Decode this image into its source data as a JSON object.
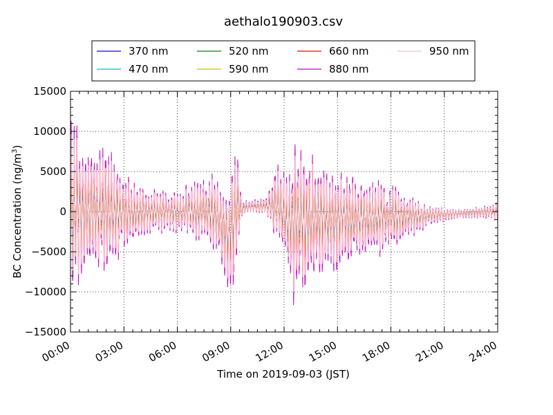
{
  "chart_data": {
    "type": "line",
    "title": "aethalo190903.csv",
    "xlabel": "Time on 2019-09-03 (JST)",
    "ylabel": "BC Concentration (ng/m",
    "ylabel_sup": "3",
    "ylabel_tail": ")",
    "xlim": [
      0,
      24
    ],
    "ylim": [
      -15000,
      15000
    ],
    "grid": true,
    "legend_position": "top-center",
    "x_tick_values": [
      0,
      3,
      6,
      9,
      12,
      15,
      18,
      21,
      24
    ],
    "x_tick_labels": [
      "00:00",
      "03:00",
      "06:00",
      "09:00",
      "12:00",
      "15:00",
      "18:00",
      "21:00",
      "24:00"
    ],
    "y_tick_values": [
      -15000,
      -10000,
      -5000,
      0,
      5000,
      10000,
      15000
    ],
    "y_tick_labels": [
      "−15000",
      "−10000",
      "−5000",
      "0",
      "5000",
      "10000",
      "15000"
    ],
    "series": [
      {
        "name": "370 nm",
        "color": "#0000ff",
        "scale": 0.42
      },
      {
        "name": "470 nm",
        "color": "#00bfbf",
        "scale": 0.5
      },
      {
        "name": "520 nm",
        "color": "#008000",
        "scale": 0.58
      },
      {
        "name": "590 nm",
        "color": "#bfbf00",
        "scale": 0.66
      },
      {
        "name": "660 nm",
        "color": "#ff0000",
        "scale": 0.75
      },
      {
        "name": "880 nm",
        "color": "#bf00bf",
        "scale": 1.0
      },
      {
        "name": "950 nm",
        "color": "#ffc0cb",
        "scale": 0.85
      }
    ],
    "envelope_hours": [
      0,
      0.3,
      1.0,
      2.0,
      3.0,
      4.0,
      5.0,
      6.0,
      7.0,
      7.8,
      8.6,
      9.0,
      9.3,
      9.6,
      10.0,
      11.0,
      11.5,
      12.0,
      12.3,
      12.7,
      13.5,
      14.5,
      15.5,
      16.5,
      17.5,
      18.0,
      19.0,
      20.0,
      21.0,
      22.0,
      23.0,
      24.0
    ],
    "envelope_amplitude": [
      12500,
      11000,
      8500,
      9000,
      5500,
      3500,
      3000,
      3000,
      4000,
      5000,
      6000,
      8500,
      9500,
      1500,
      700,
      1200,
      5000,
      6000,
      8000,
      12000,
      9000,
      7500,
      6000,
      5500,
      4500,
      4500,
      3200,
      1500,
      900,
      600,
      800,
      1200
    ],
    "baseline_hours": [
      0,
      8.0,
      8.4,
      8.9,
      9.3,
      9.6,
      10.0,
      11.5,
      11.8,
      12.0,
      12.2,
      24.0
    ],
    "baseline_values": [
      0,
      0,
      -1200,
      -3800,
      0,
      300,
      700,
      900,
      800,
      0,
      -1500,
      0
    ]
  }
}
